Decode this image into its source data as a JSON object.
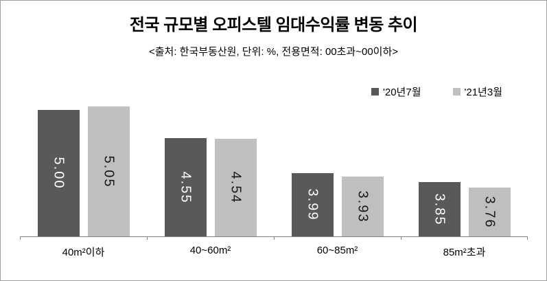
{
  "chart_data": {
    "type": "bar",
    "title": "전국 규모별 오피스텔 임대수익률 변동 추이",
    "subtitle": "<출처: 한국부동산원, 단위: %, 전용면적: 00초과~00이하>",
    "categories": [
      "40m²이하",
      "40~60m²",
      "60~85m²",
      "85m²초과"
    ],
    "series": [
      {
        "name": "'20년7월",
        "values": [
          5.0,
          4.55,
          3.99,
          3.85
        ],
        "labels": [
          "5.00",
          "4.55",
          "3.99",
          "3.85"
        ],
        "color": "#595959",
        "label_color": "#ffffff"
      },
      {
        "name": "'21년3월",
        "values": [
          5.05,
          4.54,
          3.93,
          3.76
        ],
        "labels": [
          "5.05",
          "4.54",
          "3.93",
          "3.76"
        ],
        "color": "#bfbfbf",
        "label_color": "#1a1a1a"
      }
    ],
    "xlabel": "",
    "ylabel": "",
    "ylim": [
      2.98,
      5.25
    ],
    "y_axis_visible": false,
    "grid": false,
    "legend_position": "top-right",
    "value_labels": "inside-vertical-rotated-90",
    "axis_color": "#808080",
    "frame_border_color": "#9e9e9e",
    "background_color": "#ffffff"
  }
}
